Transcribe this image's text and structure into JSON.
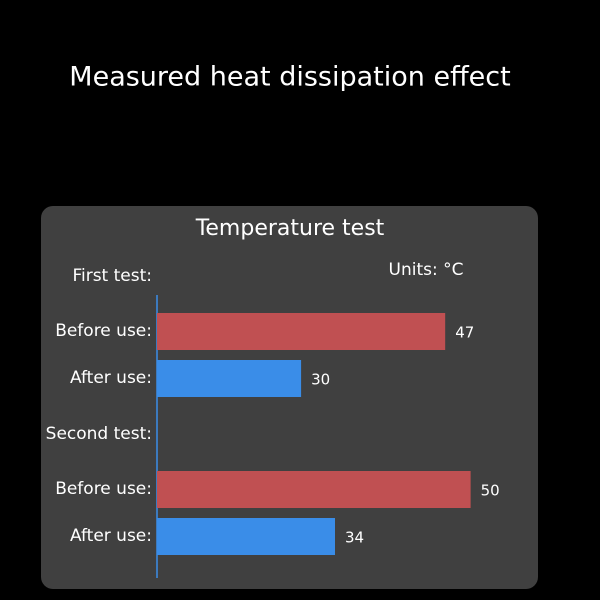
{
  "heading": "Measured heat dissipation effect",
  "chart_data": {
    "type": "bar",
    "orientation": "horizontal",
    "title": "Temperature test",
    "units": "Units: °C",
    "colors": [
      "#c05052",
      "#3a8de8"
    ],
    "xlim": [
      13,
      55
    ],
    "groups": [
      {
        "name": "First test:",
        "categories": [
          "Before use:",
          "After use:"
        ],
        "values": [
          47,
          30
        ]
      },
      {
        "name": "Second test:",
        "categories": [
          "Before use:",
          "After use:"
        ],
        "values": [
          50,
          34
        ]
      }
    ]
  }
}
